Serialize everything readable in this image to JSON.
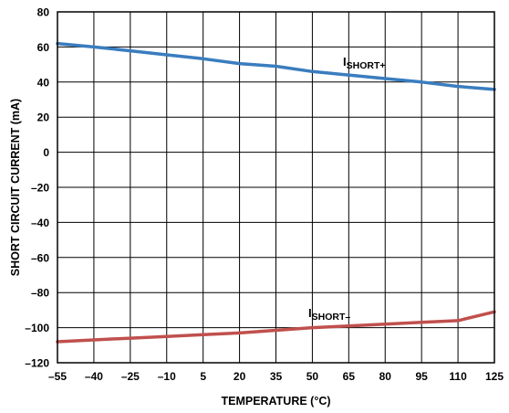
{
  "chart_data": {
    "type": "line",
    "xlabel": "TEMPERATURE (°C)",
    "ylabel": "SHORT CIRCUIT CURRENT (mA)",
    "xlim": [
      -55,
      125
    ],
    "ylim": [
      -120,
      80
    ],
    "x_ticks": [
      -55,
      -40,
      -25,
      -10,
      5,
      20,
      35,
      50,
      65,
      80,
      95,
      110,
      125
    ],
    "x_tick_labels": [
      "–55",
      "–40",
      "–25",
      "–10",
      "5",
      "20",
      "35",
      "50",
      "65",
      "80",
      "95",
      "110",
      "125"
    ],
    "y_ticks": [
      80,
      60,
      40,
      20,
      0,
      -20,
      -40,
      -60,
      -80,
      -100,
      -120
    ],
    "y_tick_labels": [
      "80",
      "60",
      "40",
      "20",
      "0",
      "–20",
      "–40",
      "–60",
      "–80",
      "–100",
      "–120"
    ],
    "grid": true,
    "series": [
      {
        "name_main": "I",
        "name_sub": "SHORT+",
        "color": "#3a7dbf",
        "x": [
          -55,
          -40,
          -25,
          -10,
          5,
          20,
          35,
          50,
          65,
          80,
          95,
          110,
          125
        ],
        "y": [
          62,
          60,
          57.8,
          55.5,
          53.3,
          50.5,
          49,
          46,
          44,
          42,
          40,
          37.5,
          35.8
        ]
      },
      {
        "name_main": "I",
        "name_sub": "SHORT–",
        "color": "#c0504d",
        "x": [
          -55,
          -40,
          -25,
          -10,
          5,
          20,
          35,
          50,
          65,
          80,
          95,
          110,
          125
        ],
        "y": [
          -108,
          -107,
          -106,
          -105,
          -104,
          -103,
          -101.5,
          -100,
          -99,
          -98,
          -97,
          -96,
          -91
        ]
      }
    ]
  }
}
